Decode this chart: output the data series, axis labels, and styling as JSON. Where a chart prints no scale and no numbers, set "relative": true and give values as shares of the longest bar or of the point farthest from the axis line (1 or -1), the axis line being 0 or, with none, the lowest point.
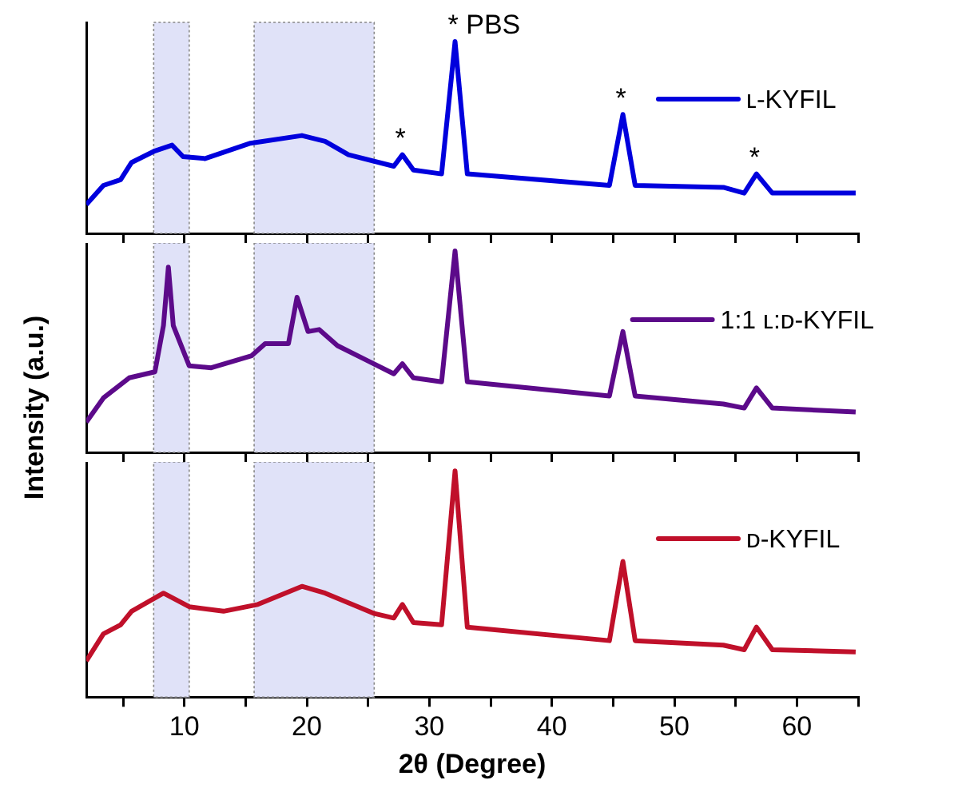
{
  "chart_data": [
    {
      "type": "line",
      "relative": true,
      "legend": "top right",
      "tick_labels": false,
      "x": [
        2,
        3.4,
        4.8,
        5.7,
        7.6,
        9.0,
        9.9,
        11.7,
        15.4,
        19.6,
        21.5,
        23.4,
        27.1,
        27.8,
        28.7,
        31.0,
        32.1,
        33.1,
        44.7,
        45.8,
        46.8,
        54.0,
        55.7,
        56.7,
        58.0,
        64.8
      ],
      "series": [
        {
          "name": "ʟ-KYFIL",
          "color": "#0000dd",
          "values": [
            0.15,
            0.25,
            0.28,
            0.37,
            0.43,
            0.46,
            0.4,
            0.39,
            0.47,
            0.51,
            0.48,
            0.41,
            0.35,
            0.41,
            0.33,
            0.31,
            1.0,
            0.31,
            0.25,
            0.62,
            0.25,
            0.24,
            0.21,
            0.31,
            0.21,
            0.21
          ]
        }
      ],
      "xlim": [
        2,
        65
      ],
      "xticks": [
        {
          "value": 5,
          "label": null
        },
        10,
        {
          "value": 15,
          "label": null
        },
        20,
        {
          "value": 25,
          "label": null
        },
        30,
        {
          "value": 35,
          "label": null
        },
        40,
        {
          "value": 45,
          "label": null
        },
        50,
        {
          "value": 55,
          "label": null
        },
        60,
        {
          "value": 65,
          "label": null
        }
      ],
      "bands": [
        {
          "axis": "x",
          "from": 7.5,
          "to": 10.4,
          "color": "#e0e2f8"
        },
        {
          "axis": "x",
          "from": 15.7,
          "to": 25.5,
          "color": "#e0e2f8"
        }
      ],
      "annotations": [
        {
          "text": "* PBS",
          "x": 32.1,
          "y": 1.0
        },
        {
          "text": "*",
          "x": 27.8,
          "y": 0.41
        },
        {
          "text": "*",
          "x": 45.8,
          "y": 0.62
        },
        {
          "text": "*",
          "x": 56.7,
          "y": 0.31
        }
      ]
    },
    {
      "type": "line",
      "relative": true,
      "legend": "top right",
      "tick_labels": false,
      "ylabel": "Intensity (a.u.)",
      "x": [
        2,
        3.4,
        5.5,
        7.6,
        8.3,
        8.7,
        9.1,
        10.4,
        12.2,
        15.5,
        16.6,
        18.5,
        19.2,
        20.1,
        21.0,
        22.5,
        24.8,
        27.1,
        27.8,
        28.7,
        31.0,
        32.1,
        33.1,
        44.7,
        45.8,
        46.8,
        54.0,
        55.7,
        56.7,
        58.0,
        64.8
      ],
      "series": [
        {
          "name": "1:1 ʟ:ᴅ-KYFIL",
          "color": "#5c0a8a",
          "values": [
            0.15,
            0.27,
            0.37,
            0.4,
            0.63,
            0.92,
            0.63,
            0.43,
            0.42,
            0.48,
            0.54,
            0.54,
            0.77,
            0.6,
            0.61,
            0.53,
            0.46,
            0.39,
            0.44,
            0.37,
            0.35,
            1.0,
            0.35,
            0.28,
            0.6,
            0.28,
            0.24,
            0.22,
            0.32,
            0.22,
            0.2
          ]
        }
      ],
      "xlim": [
        2,
        65
      ],
      "xticks": [
        {
          "value": 5,
          "label": null
        },
        10,
        {
          "value": 15,
          "label": null
        },
        20,
        {
          "value": 25,
          "label": null
        },
        30,
        {
          "value": 35,
          "label": null
        },
        40,
        {
          "value": 45,
          "label": null
        },
        50,
        {
          "value": 55,
          "label": null
        },
        60,
        {
          "value": 65,
          "label": null
        }
      ],
      "bands": [
        {
          "axis": "x",
          "from": 7.5,
          "to": 10.4,
          "color": "#e0e2f8"
        },
        {
          "axis": "x",
          "from": 15.7,
          "to": 25.5,
          "color": "#e0e2f8"
        }
      ]
    },
    {
      "type": "line",
      "relative": true,
      "legend": "top right",
      "tick_labels": "x",
      "xlabel": "2θ (Degree)",
      "x": [
        2,
        3.4,
        4.8,
        5.7,
        8.3,
        10.4,
        13.2,
        16.0,
        19.6,
        21.5,
        25.5,
        27.1,
        27.8,
        28.7,
        31.0,
        32.1,
        33.1,
        44.7,
        45.8,
        46.8,
        54.0,
        55.7,
        56.7,
        58.0,
        64.8
      ],
      "series": [
        {
          "name": "ᴅ-KYFIL",
          "color": "#c0102a",
          "values": [
            0.16,
            0.28,
            0.32,
            0.38,
            0.46,
            0.4,
            0.38,
            0.41,
            0.49,
            0.46,
            0.37,
            0.35,
            0.41,
            0.33,
            0.32,
            1.0,
            0.31,
            0.25,
            0.6,
            0.25,
            0.23,
            0.21,
            0.31,
            0.21,
            0.2
          ]
        }
      ],
      "xlim": [
        2,
        65
      ],
      "xticks": [
        {
          "value": 5,
          "label": null
        },
        10,
        {
          "value": 15,
          "label": null
        },
        20,
        {
          "value": 25,
          "label": null
        },
        30,
        {
          "value": 35,
          "label": null
        },
        40,
        {
          "value": 45,
          "label": null
        },
        50,
        {
          "value": 55,
          "label": null
        },
        60,
        {
          "value": 65,
          "label": null
        }
      ],
      "bands": [
        {
          "axis": "x",
          "from": 7.5,
          "to": 10.4,
          "color": "#e0e2f8"
        },
        {
          "axis": "x",
          "from": 15.7,
          "to": 25.5,
          "color": "#e0e2f8"
        }
      ]
    }
  ]
}
